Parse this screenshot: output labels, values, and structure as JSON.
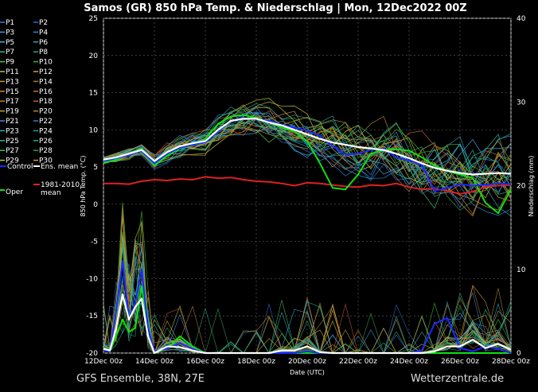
{
  "chart_data": {
    "type": "line",
    "title": "Samos  (GR)  850 hPa Temp. & Niederschlag | Mon, 12Dec2022 00Z",
    "xlabel": "Date (UTC)",
    "ylabel_left": "850 hPa Temp. (°C)",
    "ylabel_right": "Niederschlag (mm)",
    "x_ticks": [
      "12Dec 00z",
      "14Dec 00z",
      "16Dec 00z",
      "18Dec 00z",
      "20Dec 00z",
      "22Dec 00z",
      "24Dec 00z",
      "26Dec 00z",
      "28Dec 00z"
    ],
    "y_left_ticks": [
      "25",
      "20",
      "15",
      "10",
      "5",
      "0",
      "-5",
      "-10",
      "-15",
      "-20"
    ],
    "y_right_ticks": [
      "40",
      "30",
      "20",
      "10",
      "0"
    ],
    "ylim_left": [
      -20,
      25
    ],
    "ylim_right": [
      0,
      40
    ],
    "x_range_days": [
      0,
      16
    ],
    "grid": true,
    "legend_placement": "left",
    "footer_left": "GFS Ensemble, 38N, 27E",
    "footer_right": "Wetterzentrale.de",
    "legend": [
      {
        "label": "P1",
        "color": "#3a78d8"
      },
      {
        "label": "P2",
        "color": "#2f6ad0"
      },
      {
        "label": "P3",
        "color": "#3d9ee6"
      },
      {
        "label": "P4",
        "color": "#2c8ad8"
      },
      {
        "label": "P5",
        "color": "#33b0e0"
      },
      {
        "label": "P6",
        "color": "#2aa6a6"
      },
      {
        "label": "P7",
        "color": "#2ab89a"
      },
      {
        "label": "P8",
        "color": "#26a87c"
      },
      {
        "label": "P9",
        "color": "#52c83a"
      },
      {
        "label": "P10",
        "color": "#3cb82a"
      },
      {
        "label": "P11",
        "color": "#b8c040"
      },
      {
        "label": "P12",
        "color": "#c8a838"
      },
      {
        "label": "P13",
        "color": "#c89a48"
      },
      {
        "label": "P14",
        "color": "#b07a3a"
      },
      {
        "label": "P15",
        "color": "#d08a2a"
      },
      {
        "label": "P16",
        "color": "#c0762a"
      },
      {
        "label": "P17",
        "color": "#d0762a"
      },
      {
        "label": "P18",
        "color": "#c05a3a"
      },
      {
        "label": "P19",
        "color": "#c8a030"
      },
      {
        "label": "P20",
        "color": "#b08a3a"
      },
      {
        "label": "P21",
        "color": "#3a88e0"
      },
      {
        "label": "P22",
        "color": "#2e7ad0"
      },
      {
        "label": "P23",
        "color": "#2fa6c6"
      },
      {
        "label": "P24",
        "color": "#2a9ab8"
      },
      {
        "label": "P25",
        "color": "#2ab88a"
      },
      {
        "label": "P26",
        "color": "#30a878"
      },
      {
        "label": "P27",
        "color": "#3cc058"
      },
      {
        "label": "P28",
        "color": "#30a050"
      },
      {
        "label": "P29",
        "color": "#b8c838"
      },
      {
        "label": "P30",
        "color": "#c8a028"
      },
      {
        "label": "Control",
        "color": "#1a28ff"
      },
      {
        "label": "Ens. mean",
        "color": "#ffffff"
      },
      {
        "label": "1981-2010 mean",
        "color": "#e02020"
      },
      {
        "label": "Oper",
        "color": "#10e010"
      }
    ],
    "series": [
      {
        "name": "Ens. mean",
        "axis": "left",
        "color": "#ffffff",
        "x": [
          0,
          0.5,
          1,
          1.5,
          2,
          2.5,
          3,
          3.5,
          4,
          4.5,
          5,
          5.5,
          6,
          6.5,
          7,
          7.5,
          8,
          8.5,
          9,
          9.5,
          10,
          10.5,
          11,
          11.5,
          12,
          12.5,
          13,
          13.5,
          14,
          14.5,
          15,
          15.5,
          16
        ],
        "y": [
          6,
          6.3,
          6.8,
          7.3,
          5.8,
          7.0,
          7.8,
          8.2,
          8.5,
          10.0,
          11.2,
          11.5,
          11.5,
          11.0,
          10.6,
          10.0,
          9.4,
          8.8,
          8.3,
          8.0,
          7.7,
          7.5,
          7.3,
          6.8,
          6.2,
          5.5,
          4.9,
          4.5,
          4.2,
          4.0,
          4.1,
          4.2,
          4.1
        ]
      },
      {
        "name": "Control",
        "axis": "left",
        "color": "#1a28ff",
        "x": [
          0,
          0.5,
          1,
          1.5,
          2,
          2.5,
          3,
          3.5,
          4,
          4.5,
          5,
          5.5,
          6,
          6.5,
          7,
          7.5,
          8,
          8.5,
          9,
          9.5,
          10,
          10.5,
          11,
          11.5,
          12,
          12.5,
          13,
          13.5,
          14,
          14.5,
          15,
          15.5,
          16
        ],
        "y": [
          5.8,
          6.2,
          6.6,
          7.2,
          5.5,
          6.8,
          7.6,
          8.0,
          8.3,
          9.8,
          11.2,
          11.6,
          11.4,
          11.2,
          10.7,
          10.3,
          9.9,
          9.2,
          7.8,
          6.7,
          6.8,
          7.3,
          7.5,
          6.3,
          5.9,
          5.3,
          1.8,
          2.2,
          2.7,
          2.5,
          2.6,
          2.8,
          2.7
        ]
      },
      {
        "name": "Oper",
        "axis": "left",
        "color": "#10e010",
        "x": [
          0,
          0.5,
          1,
          1.5,
          2,
          2.5,
          3,
          3.5,
          4,
          4.5,
          5,
          5.5,
          6,
          6.5,
          7,
          7.5,
          8,
          8.5,
          9,
          9.5,
          10,
          10.5,
          11,
          11.5,
          12,
          12.5,
          13,
          13.5,
          14,
          14.5,
          15,
          15.5,
          16
        ],
        "y": [
          5.5,
          6.0,
          6.8,
          7.5,
          5.2,
          6.5,
          7.5,
          8.0,
          8.8,
          10.8,
          11.8,
          12.0,
          11.6,
          11.0,
          10.3,
          9.8,
          8.5,
          5.5,
          2.2,
          2.0,
          4.0,
          6.8,
          7.3,
          7.4,
          7.2,
          6.3,
          5.2,
          4.5,
          4.0,
          3.5,
          0.2,
          -1.2,
          2.0
        ]
      },
      {
        "name": "1981-2010 mean",
        "axis": "left",
        "color": "#e02020",
        "x": [
          0,
          0.5,
          1,
          1.5,
          2,
          2.5,
          3,
          3.5,
          4,
          4.5,
          5,
          5.5,
          6,
          6.5,
          7,
          7.5,
          8,
          8.5,
          9,
          9.5,
          10,
          10.5,
          11,
          11.5,
          12,
          12.5,
          13,
          13.5,
          14,
          14.5,
          15,
          15.5,
          16
        ],
        "y": [
          2.8,
          2.8,
          2.7,
          3.1,
          3.3,
          3.2,
          3.4,
          3.3,
          3.7,
          3.5,
          3.6,
          3.3,
          3.1,
          3.0,
          2.8,
          2.5,
          2.9,
          2.8,
          2.6,
          2.4,
          2.3,
          2.6,
          2.5,
          2.8,
          2.3,
          2.0,
          2.1,
          1.8,
          1.4,
          1.7,
          2.4,
          2.5,
          2.6
        ]
      },
      {
        "name": "Ens. mean precip",
        "axis": "right",
        "color": "#ffffff",
        "x": [
          0,
          0.25,
          0.5,
          0.75,
          1,
          1.25,
          1.5,
          1.75,
          2,
          2.5,
          3,
          3.5,
          4,
          4.5,
          5,
          5.5,
          6,
          6.5,
          7,
          7.5,
          8,
          8.5,
          9,
          9.5,
          10,
          10.5,
          11,
          11.5,
          12,
          12.5,
          13,
          13.5,
          14,
          14.5,
          15,
          15.5,
          16
        ],
        "y": [
          0.5,
          0.3,
          3,
          7,
          4,
          5.5,
          6.5,
          2,
          0,
          0.8,
          0.7,
          0.3,
          0,
          0,
          0,
          0,
          0,
          0,
          0.3,
          0.3,
          0.8,
          0.1,
          0,
          0,
          0,
          0,
          0,
          0,
          0,
          0,
          0.2,
          0.8,
          0.8,
          1.6,
          0.6,
          1.1,
          0.4
        ]
      },
      {
        "name": "Control precip",
        "axis": "right",
        "color": "#1a28ff",
        "x": [
          0,
          0.25,
          0.5,
          0.75,
          1,
          1.25,
          1.5,
          1.75,
          2,
          2.5,
          3,
          3.5,
          4,
          4.5,
          5,
          5.5,
          6,
          6.5,
          7,
          7.5,
          8,
          8.5,
          9,
          9.5,
          10,
          10.5,
          11,
          11.5,
          12,
          12.5,
          13,
          13.5,
          14,
          14.5,
          15,
          15.5,
          16
        ],
        "y": [
          0.3,
          0.2,
          5,
          11,
          4,
          6,
          10,
          3,
          0.2,
          0.5,
          1.2,
          0.5,
          0,
          0,
          0,
          0,
          0,
          0,
          0,
          0,
          0.2,
          0,
          0,
          0,
          0,
          0,
          0,
          0,
          0,
          0.3,
          3.5,
          4.2,
          0.6,
          0.2,
          0.8,
          0.5,
          0
        ]
      },
      {
        "name": "Oper precip",
        "axis": "right",
        "color": "#10e010",
        "x": [
          0,
          0.25,
          0.5,
          0.75,
          1,
          1.25,
          1.5,
          1.75,
          2,
          2.5,
          3,
          3.5,
          4,
          4.5,
          5,
          5.5,
          6,
          6.5,
          7,
          7.5,
          8,
          8.5,
          9,
          9.5,
          10,
          10.5,
          11,
          11.5,
          12,
          12.5,
          13,
          13.5,
          14,
          14.5,
          15,
          15.5,
          16
        ],
        "y": [
          0.4,
          0.2,
          2,
          4,
          2.5,
          3,
          8,
          2,
          0,
          0.5,
          2,
          0.8,
          0,
          0,
          0,
          0,
          0,
          0,
          0,
          0,
          0,
          0,
          0,
          0,
          0,
          0,
          0,
          0,
          0,
          0,
          0,
          0,
          0,
          0,
          0,
          0,
          0
        ]
      }
    ]
  }
}
